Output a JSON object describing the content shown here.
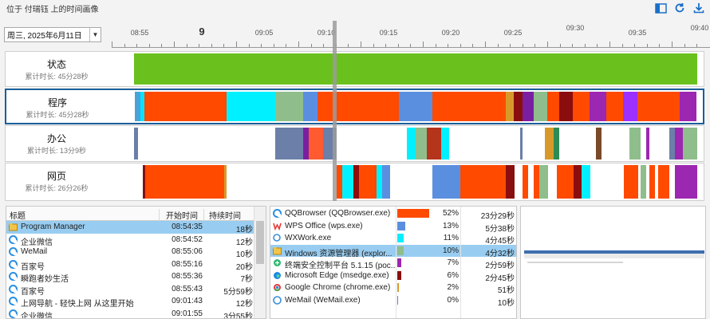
{
  "caption": "位于 付瑞钰 上的时间画像",
  "toolbar": {
    "icons": [
      "panel-icon",
      "refresh-icon",
      "download-icon"
    ]
  },
  "date_selector": {
    "value": "周三, 2025年6月11日"
  },
  "ruler": {
    "hour_label": "9",
    "labels": [
      "08:55",
      "09:05",
      "09:10",
      "09:15",
      "09:20",
      "09:25",
      "09:30",
      "09:35",
      "09:40"
    ]
  },
  "tracks": [
    {
      "name": "状态",
      "duration": "累计时长: 45分28秒",
      "segments": [
        {
          "start": 0.0,
          "end": 1.0,
          "color": "#6ac11d"
        }
      ]
    },
    {
      "name": "程序",
      "duration": "累计时长: 45分28秒",
      "segments": [
        {
          "start": 0.0,
          "end": 0.01,
          "color": "#4aa3d8"
        },
        {
          "start": 0.01,
          "end": 0.017,
          "color": "#00e5ff"
        },
        {
          "start": 0.017,
          "end": 0.163,
          "color": "#ff4a00"
        },
        {
          "start": 0.163,
          "end": 0.25,
          "color": "#00f0ff"
        },
        {
          "start": 0.25,
          "end": 0.3,
          "color": "#8fbe8c"
        },
        {
          "start": 0.3,
          "end": 0.325,
          "color": "#5a8fe0"
        },
        {
          "start": 0.325,
          "end": 0.4,
          "color": "#ff4a00"
        },
        {
          "start": 0.4,
          "end": 0.44,
          "color": "#ff4a00"
        },
        {
          "start": 0.44,
          "end": 0.47,
          "color": "#ff4a00"
        },
        {
          "start": 0.47,
          "end": 0.53,
          "color": "#5a8fe0"
        },
        {
          "start": 0.53,
          "end": 0.58,
          "color": "#ff4a00"
        },
        {
          "start": 0.58,
          "end": 0.66,
          "color": "#ff4a00"
        },
        {
          "start": 0.66,
          "end": 0.675,
          "color": "#d79a2a"
        },
        {
          "start": 0.675,
          "end": 0.69,
          "color": "#8b0e0e"
        },
        {
          "start": 0.69,
          "end": 0.71,
          "color": "#7b1fa2"
        },
        {
          "start": 0.71,
          "end": 0.735,
          "color": "#8fbe8c"
        },
        {
          "start": 0.735,
          "end": 0.755,
          "color": "#ff4a00"
        },
        {
          "start": 0.755,
          "end": 0.78,
          "color": "#8b0e0e"
        },
        {
          "start": 0.78,
          "end": 0.81,
          "color": "#ff4a00"
        },
        {
          "start": 0.81,
          "end": 0.84,
          "color": "#9c27b0"
        },
        {
          "start": 0.84,
          "end": 0.87,
          "color": "#ff4a00"
        },
        {
          "start": 0.87,
          "end": 0.895,
          "color": "#9b30ff"
        },
        {
          "start": 0.895,
          "end": 0.97,
          "color": "#ff4a00"
        },
        {
          "start": 0.97,
          "end": 1.0,
          "color": "#9c27b0"
        }
      ]
    },
    {
      "name": "办公",
      "duration": "累计时长: 13分9秒",
      "segments": [
        {
          "start": 0.0,
          "end": 0.007,
          "color": "#6b7fa8"
        },
        {
          "start": 0.25,
          "end": 0.3,
          "color": "#6b7fa8"
        },
        {
          "start": 0.3,
          "end": 0.31,
          "color": "#7b1fa2"
        },
        {
          "start": 0.31,
          "end": 0.335,
          "color": "#ff5a30"
        },
        {
          "start": 0.335,
          "end": 0.36,
          "color": "#6b7fa8"
        },
        {
          "start": 0.485,
          "end": 0.5,
          "color": "#00f0ff"
        },
        {
          "start": 0.5,
          "end": 0.52,
          "color": "#8fbe8c"
        },
        {
          "start": 0.52,
          "end": 0.545,
          "color": "#b5341c"
        },
        {
          "start": 0.545,
          "end": 0.56,
          "color": "#00f0ff"
        },
        {
          "start": 0.685,
          "end": 0.69,
          "color": "#6b7fa8"
        },
        {
          "start": 0.73,
          "end": 0.745,
          "color": "#d79a2a"
        },
        {
          "start": 0.745,
          "end": 0.755,
          "color": "#2e8b57"
        },
        {
          "start": 0.82,
          "end": 0.83,
          "color": "#7b4a2a"
        },
        {
          "start": 0.88,
          "end": 0.9,
          "color": "#8fbe8c"
        },
        {
          "start": 0.91,
          "end": 0.915,
          "color": "#9c27b0"
        },
        {
          "start": 0.95,
          "end": 0.96,
          "color": "#6b7fa8"
        },
        {
          "start": 0.96,
          "end": 0.975,
          "color": "#9c27b0"
        },
        {
          "start": 0.975,
          "end": 1.0,
          "color": "#8fbe8c"
        }
      ]
    },
    {
      "name": "网页",
      "duration": "累计时长: 26分26秒",
      "segments": [
        {
          "start": 0.015,
          "end": 0.02,
          "color": "#8b0e0e"
        },
        {
          "start": 0.02,
          "end": 0.16,
          "color": "#ff4a00"
        },
        {
          "start": 0.16,
          "end": 0.165,
          "color": "#d79a2a"
        },
        {
          "start": 0.36,
          "end": 0.37,
          "color": "#ff4a00"
        },
        {
          "start": 0.37,
          "end": 0.39,
          "color": "#00f0ff"
        },
        {
          "start": 0.39,
          "end": 0.4,
          "color": "#8b0e0e"
        },
        {
          "start": 0.4,
          "end": 0.43,
          "color": "#ff4a00"
        },
        {
          "start": 0.43,
          "end": 0.44,
          "color": "#00f0ff"
        },
        {
          "start": 0.44,
          "end": 0.455,
          "color": "#5a8fe0"
        },
        {
          "start": 0.53,
          "end": 0.58,
          "color": "#5a8fe0"
        },
        {
          "start": 0.58,
          "end": 0.66,
          "color": "#ff4a00"
        },
        {
          "start": 0.66,
          "end": 0.675,
          "color": "#8b0e0e"
        },
        {
          "start": 0.69,
          "end": 0.7,
          "color": "#ff4a00"
        },
        {
          "start": 0.71,
          "end": 0.72,
          "color": "#ff4a00"
        },
        {
          "start": 0.72,
          "end": 0.735,
          "color": "#8fbe8c"
        },
        {
          "start": 0.75,
          "end": 0.78,
          "color": "#ff4a00"
        },
        {
          "start": 0.78,
          "end": 0.795,
          "color": "#8b0e0e"
        },
        {
          "start": 0.795,
          "end": 0.81,
          "color": "#00f0ff"
        },
        {
          "start": 0.87,
          "end": 0.895,
          "color": "#ff4a00"
        },
        {
          "start": 0.9,
          "end": 0.91,
          "color": "#8fbe8c"
        },
        {
          "start": 0.915,
          "end": 0.925,
          "color": "#ff4a00"
        },
        {
          "start": 0.93,
          "end": 0.95,
          "color": "#ff4a00"
        },
        {
          "start": 0.96,
          "end": 1.0,
          "color": "#9c27b0"
        }
      ]
    }
  ],
  "title_table": {
    "headers": {
      "title": "标题",
      "start": "开始时间",
      "duration": "持续时间"
    },
    "rows": [
      {
        "title": "Program Manager",
        "start": "08:54:35",
        "duration": "18秒",
        "icon": "window-icon",
        "selected": true
      },
      {
        "title": "企业微信",
        "start": "08:54:52",
        "duration": "12秒",
        "icon": "qq-browser-icon",
        "selected": false
      },
      {
        "title": "WeMail",
        "start": "08:55:06",
        "duration": "10秒",
        "icon": "qq-browser-icon",
        "selected": false
      },
      {
        "title": "百家号",
        "start": "08:55:16",
        "duration": "20秒",
        "icon": "qq-browser-icon",
        "selected": false
      },
      {
        "title": "瞬跑者妙生活",
        "start": "08:55:36",
        "duration": "7秒",
        "icon": "qq-browser-icon",
        "selected": false
      },
      {
        "title": "百家号",
        "start": "08:55:43",
        "duration": "5分59秒",
        "icon": "qq-browser-icon",
        "selected": false
      },
      {
        "title": "上网导航 - 轻快上网 从这里开始",
        "start": "09:01:43",
        "duration": "12秒",
        "icon": "qq-browser-icon",
        "selected": false
      },
      {
        "title": "企业微信",
        "start": "09:01:55",
        "duration": "3分55秒",
        "icon": "qq-browser-icon",
        "selected": false
      }
    ]
  },
  "app_table": {
    "rows": [
      {
        "name": "QQBrowser (QQBrowser.exe)",
        "percent_label": "52%",
        "percent": 0.52,
        "duration": "23分29秒",
        "color": "#ff4a00",
        "icon": "qq-browser-icon",
        "selected": false
      },
      {
        "name": "WPS Office (wps.exe)",
        "percent_label": "13%",
        "percent": 0.13,
        "duration": "5分38秒",
        "color": "#5a8fe0",
        "icon": "wps-icon",
        "selected": false
      },
      {
        "name": "WXWork.exe",
        "percent_label": "11%",
        "percent": 0.11,
        "duration": "4分45秒",
        "color": "#00f0ff",
        "icon": "wxwork-icon",
        "selected": false
      },
      {
        "name": "Windows 资源管理器 (explor...",
        "percent_label": "10%",
        "percent": 0.1,
        "duration": "4分32秒",
        "color": "#8fbe8c",
        "icon": "explorer-icon",
        "selected": true
      },
      {
        "name": "终端安全控制平台 5.1.15 (poc...",
        "percent_label": "7%",
        "percent": 0.07,
        "duration": "2分59秒",
        "color": "#9c27b0",
        "icon": "security-icon",
        "selected": false
      },
      {
        "name": "Microsoft Edge (msedge.exe)",
        "percent_label": "6%",
        "percent": 0.06,
        "duration": "2分45秒",
        "color": "#8b0e0e",
        "icon": "edge-icon",
        "selected": false
      },
      {
        "name": "Google Chrome (chrome.exe)",
        "percent_label": "2%",
        "percent": 0.02,
        "duration": "51秒",
        "color": "#d79a2a",
        "icon": "chrome-icon",
        "selected": false
      },
      {
        "name": "WeMail (WeMail.exe)",
        "percent_label": "0%",
        "percent": 0.0,
        "duration": "10秒",
        "color": "#6b7fa8",
        "icon": "wemail-icon",
        "selected": false
      }
    ]
  }
}
